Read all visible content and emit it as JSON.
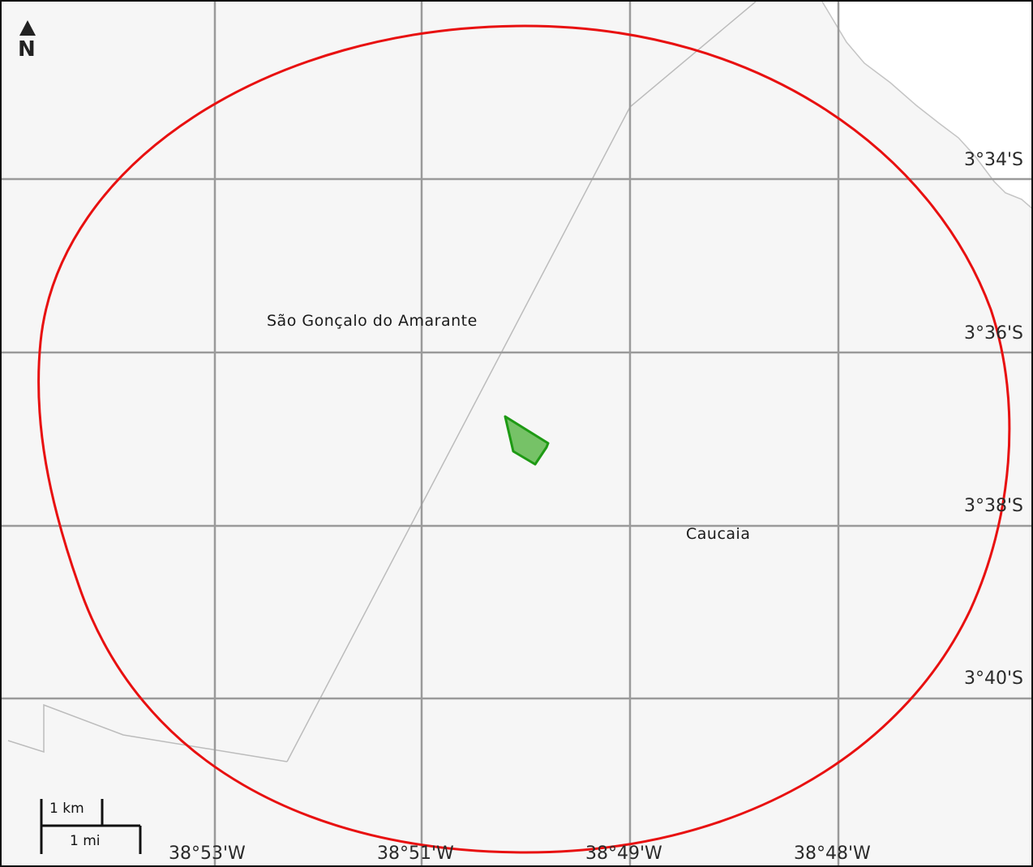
{
  "map": {
    "north_indicator": "N",
    "latitude_labels": [
      "3°34'S",
      "3°36'S",
      "3°38'S",
      "3°40'S"
    ],
    "longitude_labels": [
      "38°53'W",
      "38°51'W",
      "38°49'W",
      "38°48'W"
    ],
    "places": {
      "sao_goncalo": "São Gonçalo do Amarante",
      "caucaia": "Caucaia"
    },
    "scale_bar": {
      "km_label": "1 km",
      "mi_label": "1 mi"
    },
    "colors": {
      "land": "#f6f6f6",
      "sea": "#ffffff",
      "grid": "#9a9a9a",
      "boundary": "#bcbcbc",
      "radius_circle": "#e81010",
      "site_fill": "#6fbf5f",
      "site_stroke": "#1e9a14"
    }
  }
}
